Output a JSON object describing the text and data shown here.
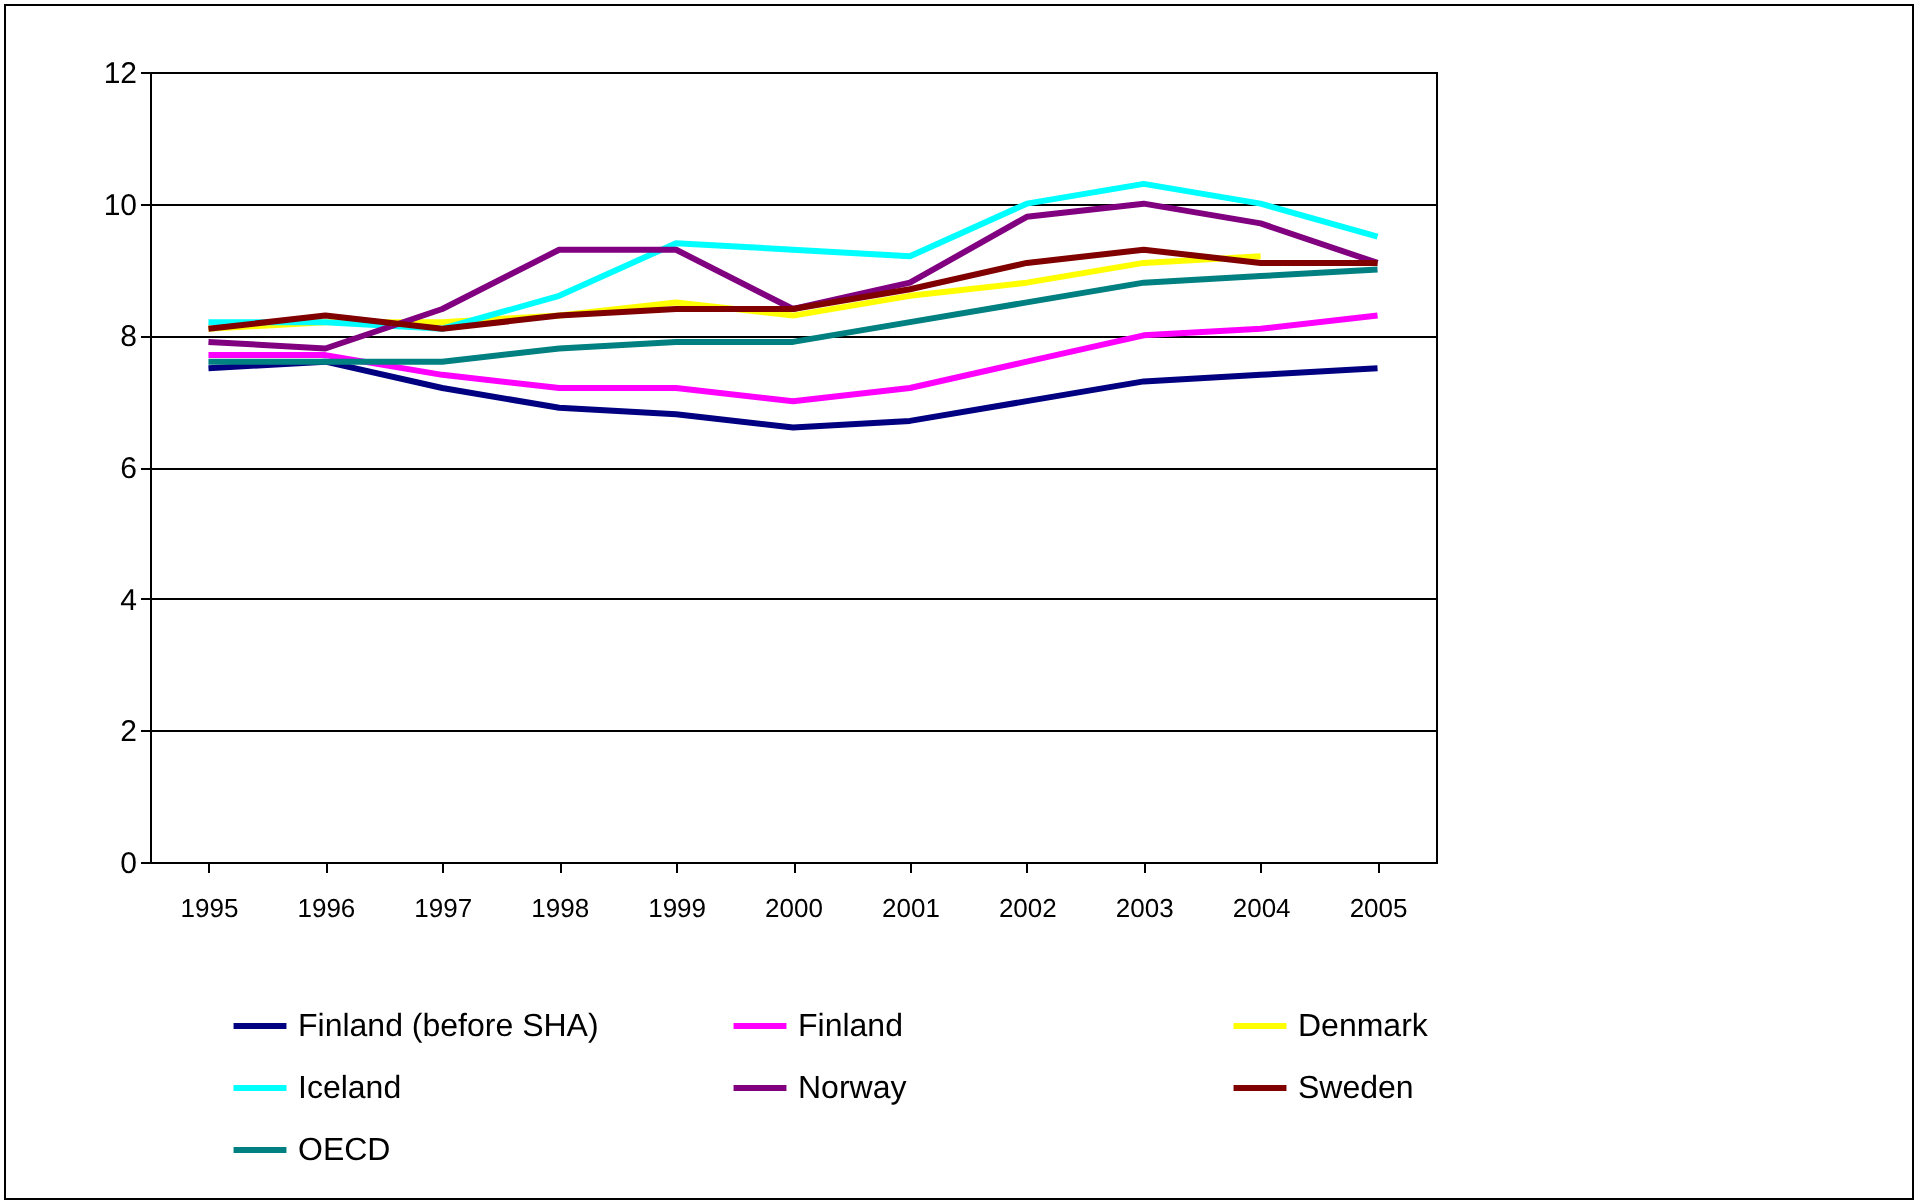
{
  "chart_data": {
    "type": "line",
    "categories": [
      "1995",
      "1996",
      "1997",
      "1998",
      "1999",
      "2000",
      "2001",
      "2002",
      "2003",
      "2004",
      "2005"
    ],
    "ylim": [
      0,
      12
    ],
    "yticks": [
      0,
      2,
      4,
      6,
      8,
      10,
      12
    ],
    "grid": "y",
    "legend": "bottom",
    "marker": "none",
    "line_style": "solid",
    "series": [
      {
        "name": "Finland (before SHA)",
        "color": "#000080",
        "values": [
          7.5,
          7.6,
          7.2,
          6.9,
          6.8,
          6.6,
          6.7,
          7.0,
          7.3,
          7.4,
          7.5
        ]
      },
      {
        "name": "Finland",
        "color": "#ff00ff",
        "values": [
          7.7,
          7.7,
          7.4,
          7.2,
          7.2,
          7.0,
          7.2,
          7.6,
          8.0,
          8.1,
          8.3
        ]
      },
      {
        "name": "Denmark",
        "color": "#ffff00",
        "values": [
          8.1,
          8.2,
          8.2,
          8.3,
          8.5,
          8.3,
          8.6,
          8.8,
          9.1,
          9.2,
          null
        ]
      },
      {
        "name": "Iceland",
        "color": "#00ffff",
        "values": [
          8.2,
          8.2,
          8.1,
          8.6,
          9.4,
          9.3,
          9.2,
          10.0,
          10.3,
          10.0,
          9.5
        ]
      },
      {
        "name": "Norway",
        "color": "#800080",
        "values": [
          7.9,
          7.8,
          8.4,
          9.3,
          9.3,
          8.4,
          8.8,
          9.8,
          10.0,
          9.7,
          9.1
        ]
      },
      {
        "name": "Sweden",
        "color": "#800000",
        "values": [
          8.1,
          8.3,
          8.1,
          8.3,
          8.4,
          8.4,
          8.7,
          9.1,
          9.3,
          9.1,
          9.1
        ]
      },
      {
        "name": "OECD",
        "color": "#008080",
        "values": [
          7.6,
          7.6,
          7.6,
          7.8,
          7.9,
          7.9,
          8.2,
          8.5,
          8.8,
          8.9,
          9.0
        ]
      }
    ]
  }
}
